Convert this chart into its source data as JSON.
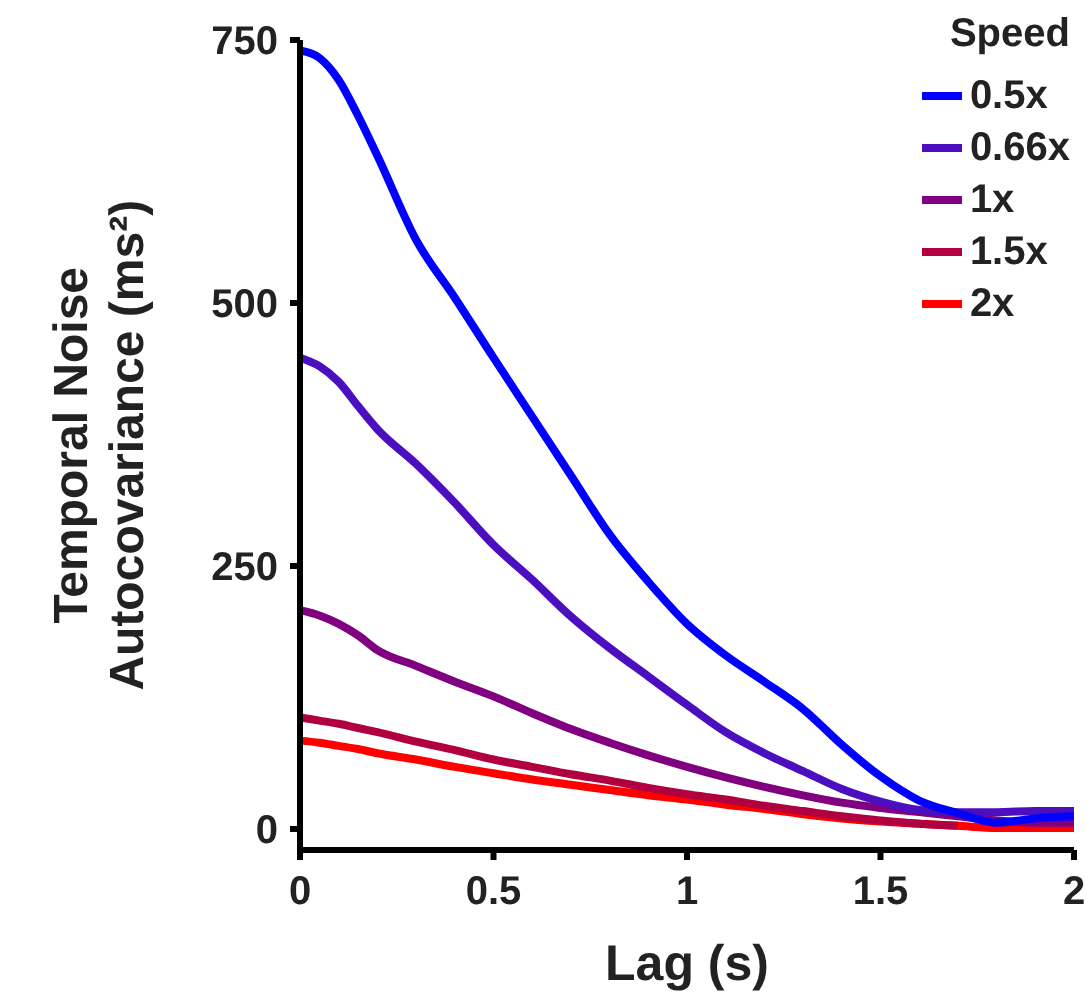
{
  "chart_data": {
    "type": "line",
    "xlabel": "Lag (s)",
    "ylabel": "Temporal Noise Autocovariance (ms²)",
    "legend_title": "Speed",
    "legend": "top right",
    "grid": false,
    "marker": "none",
    "line_style": "solid",
    "xlim": [
      0,
      2
    ],
    "xticks": [
      0,
      0.5,
      1,
      1.5,
      2
    ],
    "ylim": [
      -20,
      750
    ],
    "yticks": [
      0,
      250,
      500,
      750
    ],
    "x": [
      0,
      0.05,
      0.1,
      0.15,
      0.2,
      0.3,
      0.4,
      0.5,
      0.6,
      0.7,
      0.8,
      0.9,
      1,
      1.1,
      1.2,
      1.3,
      1.4,
      1.5,
      1.6,
      1.7,
      1.8,
      1.9,
      2
    ],
    "series": [
      {
        "name": "0.5x",
        "color": "#0000ff",
        "values": [
          740,
          733,
          712,
          678,
          640,
          560,
          505,
          448,
          392,
          336,
          280,
          235,
          195,
          165,
          140,
          114,
          80,
          50,
          27,
          15,
          6,
          10,
          12
        ]
      },
      {
        "name": "0.66x",
        "color": "#4b0fbf",
        "values": [
          448,
          440,
          425,
          402,
          380,
          347,
          310,
          270,
          237,
          202,
          172,
          145,
          118,
          92,
          72,
          55,
          38,
          26,
          18,
          16,
          16,
          17,
          17
        ]
      },
      {
        "name": "1x",
        "color": "#800080",
        "values": [
          208,
          203,
          195,
          184,
          170,
          155,
          140,
          126,
          110,
          95,
          82,
          70,
          59,
          49,
          40,
          32,
          25,
          20,
          16,
          12,
          8,
          6,
          6
        ]
      },
      {
        "name": "1.5x",
        "color": "#b00040",
        "values": [
          106,
          103,
          100,
          96,
          92,
          83,
          75,
          66,
          59,
          52,
          46,
          39,
          33,
          28,
          22,
          17,
          12,
          8,
          5,
          3,
          null,
          null,
          null
        ]
      },
      {
        "name": "2x",
        "color": "#ff0000",
        "values": [
          84,
          82,
          79,
          76,
          72,
          66,
          59,
          53,
          47,
          42,
          37,
          32,
          28,
          23,
          19,
          14,
          10,
          7,
          5,
          3,
          1,
          1,
          1
        ]
      }
    ]
  }
}
